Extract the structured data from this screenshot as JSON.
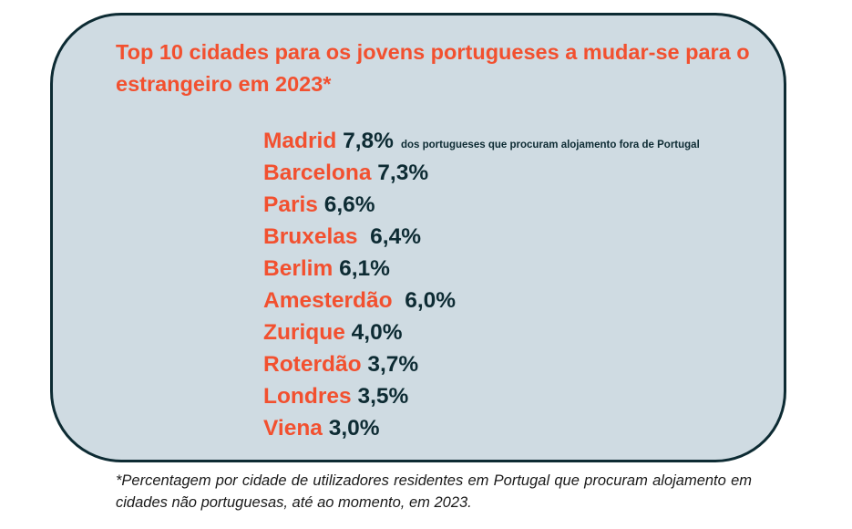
{
  "title": "Top 10 cidades para os jovens portugueses a mudar-se para o estrangeiro em 2023*",
  "first_note": "dos portugueses que procuram alojamento fora de Portugal",
  "cities": [
    {
      "name": "Madrid",
      "sep": " ",
      "value": "7,8%"
    },
    {
      "name": "Barcelona",
      "sep": " ",
      "value": "7,3%"
    },
    {
      "name": "Paris",
      "sep": " ",
      "value": "6,6%"
    },
    {
      "name": "Bruxelas",
      "sep": "  ",
      "value": "6,4%"
    },
    {
      "name": "Berlim",
      "sep": " ",
      "value": "6,1%"
    },
    {
      "name": "Amesterdão",
      "sep": "  ",
      "value": "6,0%"
    },
    {
      "name": "Zurique",
      "sep": " ",
      "value": "4,0%"
    },
    {
      "name": "Roterdão",
      "sep": " ",
      "value": "3,7%"
    },
    {
      "name": "Londres",
      "sep": " ",
      "value": "3,5%"
    },
    {
      "name": "Viena",
      "sep": " ",
      "value": "3,0%"
    }
  ],
  "footnote": "*Percentagem por cidade de utilizadores residentes em Portugal que procuram alojamento em cidades não portuguesas, até ao momento, em 2023.",
  "colors": {
    "accent": "#f2502f",
    "dark": "#0d2b33",
    "card": "#cfdbe2"
  }
}
